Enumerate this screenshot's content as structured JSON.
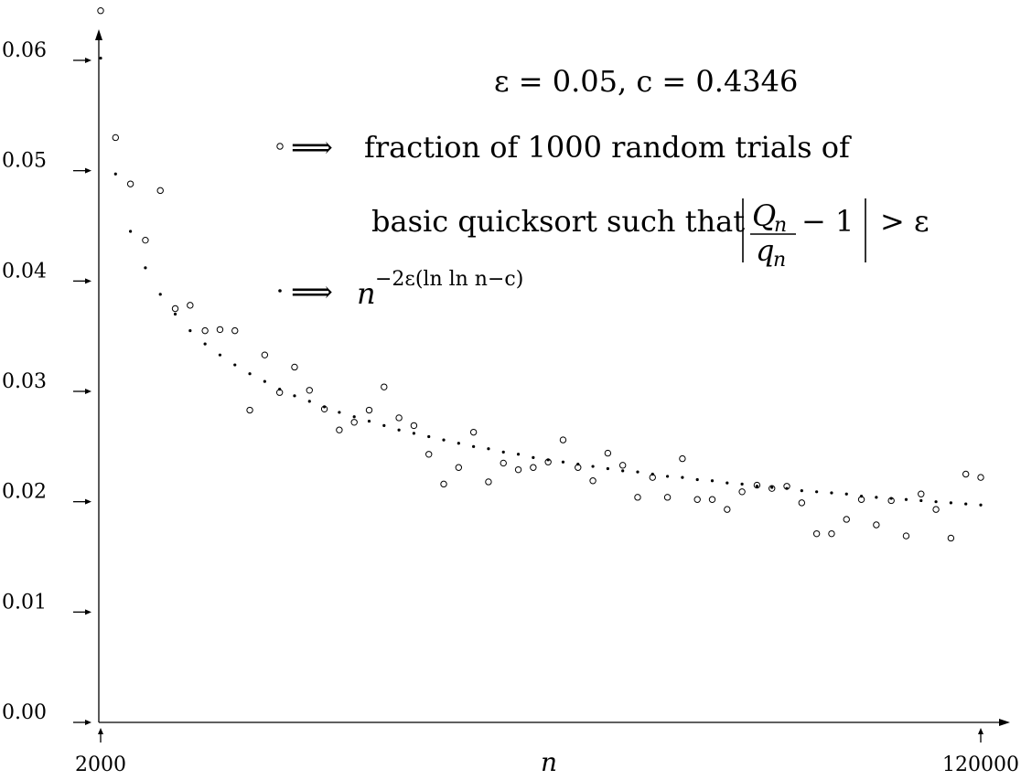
{
  "chart_data": {
    "type": "scatter",
    "xlabel": "n",
    "x_ticks": [
      "2000",
      "120000"
    ],
    "y_ticks": [
      "0.00",
      "0.01",
      "0.02",
      "0.03",
      "0.04",
      "0.05",
      "0.06"
    ],
    "xlim": [
      2000,
      120000
    ],
    "ylim": [
      0,
      0.06
    ],
    "grid": false,
    "legend_position": "top-right",
    "annotation_title": "ε = 0.05, c = 0.4346",
    "legend": {
      "arrow": "⟹",
      "trials_line1": "fraction of 1000 random trials of",
      "trials_line2": "basic quicksort such that",
      "trials_numerator": "Q",
      "trials_numerator_sub": "n",
      "trials_denominator": "q",
      "trials_denominator_sub": "n",
      "trials_minus_one": "− 1",
      "trials_gt_eps": "> ε",
      "formula_base": "n",
      "formula_exponent": "−2ε(ln ln n−c)"
    },
    "series": [
      {
        "marker": "open-circle",
        "x": [
          2000,
          4000,
          6000,
          8000,
          10000,
          12000,
          14000,
          16000,
          18000,
          20000,
          22000,
          24000,
          26000,
          28000,
          30000,
          32000,
          34000,
          36000,
          38000,
          40000,
          42000,
          44000,
          46000,
          48000,
          50000,
          52000,
          54000,
          56000,
          58000,
          60000,
          62000,
          64000,
          66000,
          68000,
          70000,
          72000,
          74000,
          76000,
          78000,
          80000,
          82000,
          84000,
          86000,
          88000,
          90000,
          92000,
          94000,
          96000,
          98000,
          100000,
          102000,
          104000,
          106000,
          108000,
          110000,
          112000,
          114000,
          116000,
          118000,
          120000
        ],
        "y": [
          0.0645,
          0.053,
          0.0488,
          0.0437,
          0.0482,
          0.0375,
          0.0378,
          0.0355,
          0.0356,
          0.0355,
          0.0283,
          0.0333,
          0.0299,
          0.0322,
          0.0301,
          0.0284,
          0.0265,
          0.0272,
          0.0283,
          0.0304,
          0.0276,
          0.0269,
          0.0243,
          0.0216,
          0.0231,
          0.0263,
          0.0218,
          0.0235,
          0.0229,
          0.0231,
          0.0236,
          0.0256,
          0.0231,
          0.0219,
          0.0244,
          0.0233,
          0.0204,
          0.0222,
          0.0204,
          0.0239,
          0.0202,
          0.0202,
          0.0193,
          0.0209,
          0.0215,
          0.0212,
          0.0214,
          0.0199,
          0.0171,
          0.0171,
          0.0184,
          0.0202,
          0.0179,
          0.0201,
          0.0169,
          0.0207,
          0.0193,
          0.0167,
          0.0225,
          0.0222
        ]
      },
      {
        "marker": "dot",
        "x": [
          2000,
          4000,
          6000,
          8000,
          10000,
          12000,
          14000,
          16000,
          18000,
          20000,
          22000,
          24000,
          26000,
          28000,
          30000,
          32000,
          34000,
          36000,
          38000,
          40000,
          42000,
          44000,
          46000,
          48000,
          50000,
          52000,
          54000,
          56000,
          58000,
          60000,
          62000,
          64000,
          66000,
          68000,
          70000,
          72000,
          74000,
          76000,
          78000,
          80000,
          82000,
          84000,
          86000,
          88000,
          90000,
          92000,
          94000,
          96000,
          98000,
          100000,
          102000,
          104000,
          106000,
          108000,
          110000,
          112000,
          114000,
          116000,
          118000,
          120000
        ],
        "y": [
          0.0602,
          0.0497,
          0.0445,
          0.0412,
          0.0388,
          0.037,
          0.0355,
          0.0343,
          0.0333,
          0.0324,
          0.0316,
          0.0309,
          0.0302,
          0.0296,
          0.0291,
          0.0286,
          0.0281,
          0.0277,
          0.0273,
          0.0269,
          0.0265,
          0.0262,
          0.0259,
          0.0256,
          0.0253,
          0.025,
          0.0248,
          0.0245,
          0.0243,
          0.024,
          0.0238,
          0.0236,
          0.0234,
          0.0232,
          0.023,
          0.0228,
          0.0227,
          0.0225,
          0.0223,
          0.0222,
          0.022,
          0.0219,
          0.0217,
          0.0216,
          0.0214,
          0.0213,
          0.0212,
          0.021,
          0.0209,
          0.0208,
          0.0207,
          0.0205,
          0.0204,
          0.0203,
          0.0202,
          0.0201,
          0.02,
          0.0199,
          0.0198,
          0.0197
        ]
      }
    ]
  }
}
